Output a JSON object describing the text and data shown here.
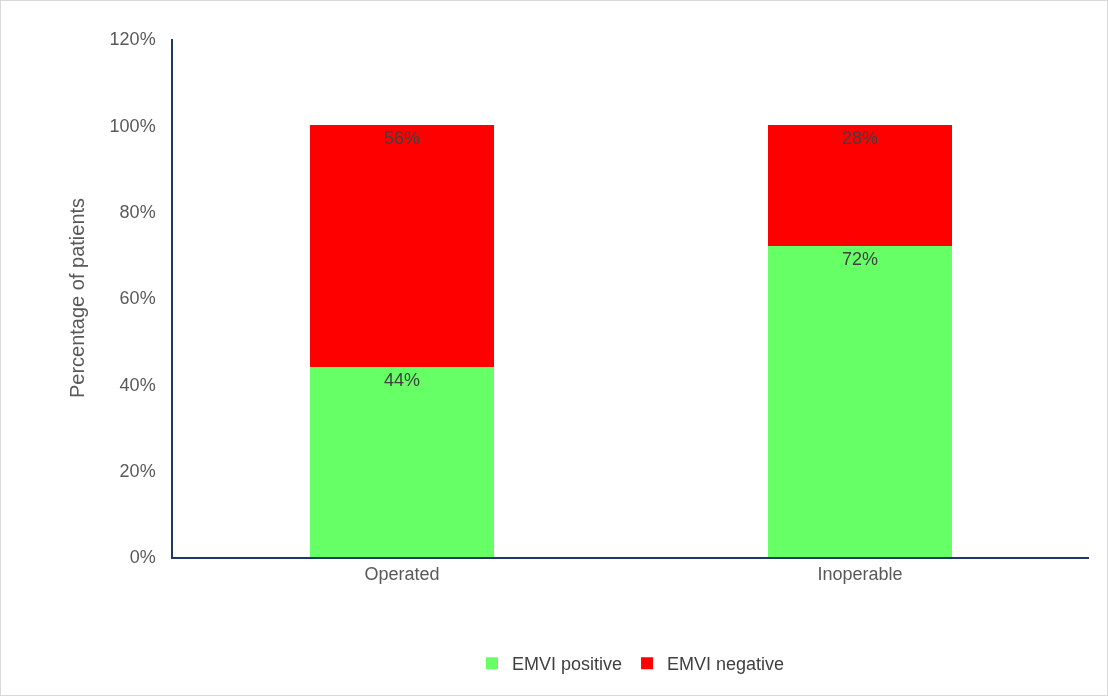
{
  "chart_data": {
    "type": "bar",
    "stacked": true,
    "ylabel": "Percentage of patients",
    "categories": [
      "Operated",
      "Inoperable"
    ],
    "series": [
      {
        "name": "EMVI positive",
        "color": "#66ff66",
        "values": [
          44,
          72
        ],
        "value_labels": [
          "44%",
          "72%"
        ]
      },
      {
        "name": "EMVI negative",
        "color": "#ff0000",
        "values": [
          56,
          28
        ],
        "value_labels": [
          "56%",
          "28%"
        ]
      }
    ],
    "ylim": [
      0,
      120
    ],
    "yticks": [
      {
        "value": 0,
        "label": "0%"
      },
      {
        "value": 20,
        "label": "20%"
      },
      {
        "value": 40,
        "label": "40%"
      },
      {
        "value": 60,
        "label": "60%"
      },
      {
        "value": 80,
        "label": "80%"
      },
      {
        "value": 100,
        "label": "100%"
      },
      {
        "value": 120,
        "label": "120%"
      }
    ],
    "grid": false,
    "legend": "bottom"
  }
}
